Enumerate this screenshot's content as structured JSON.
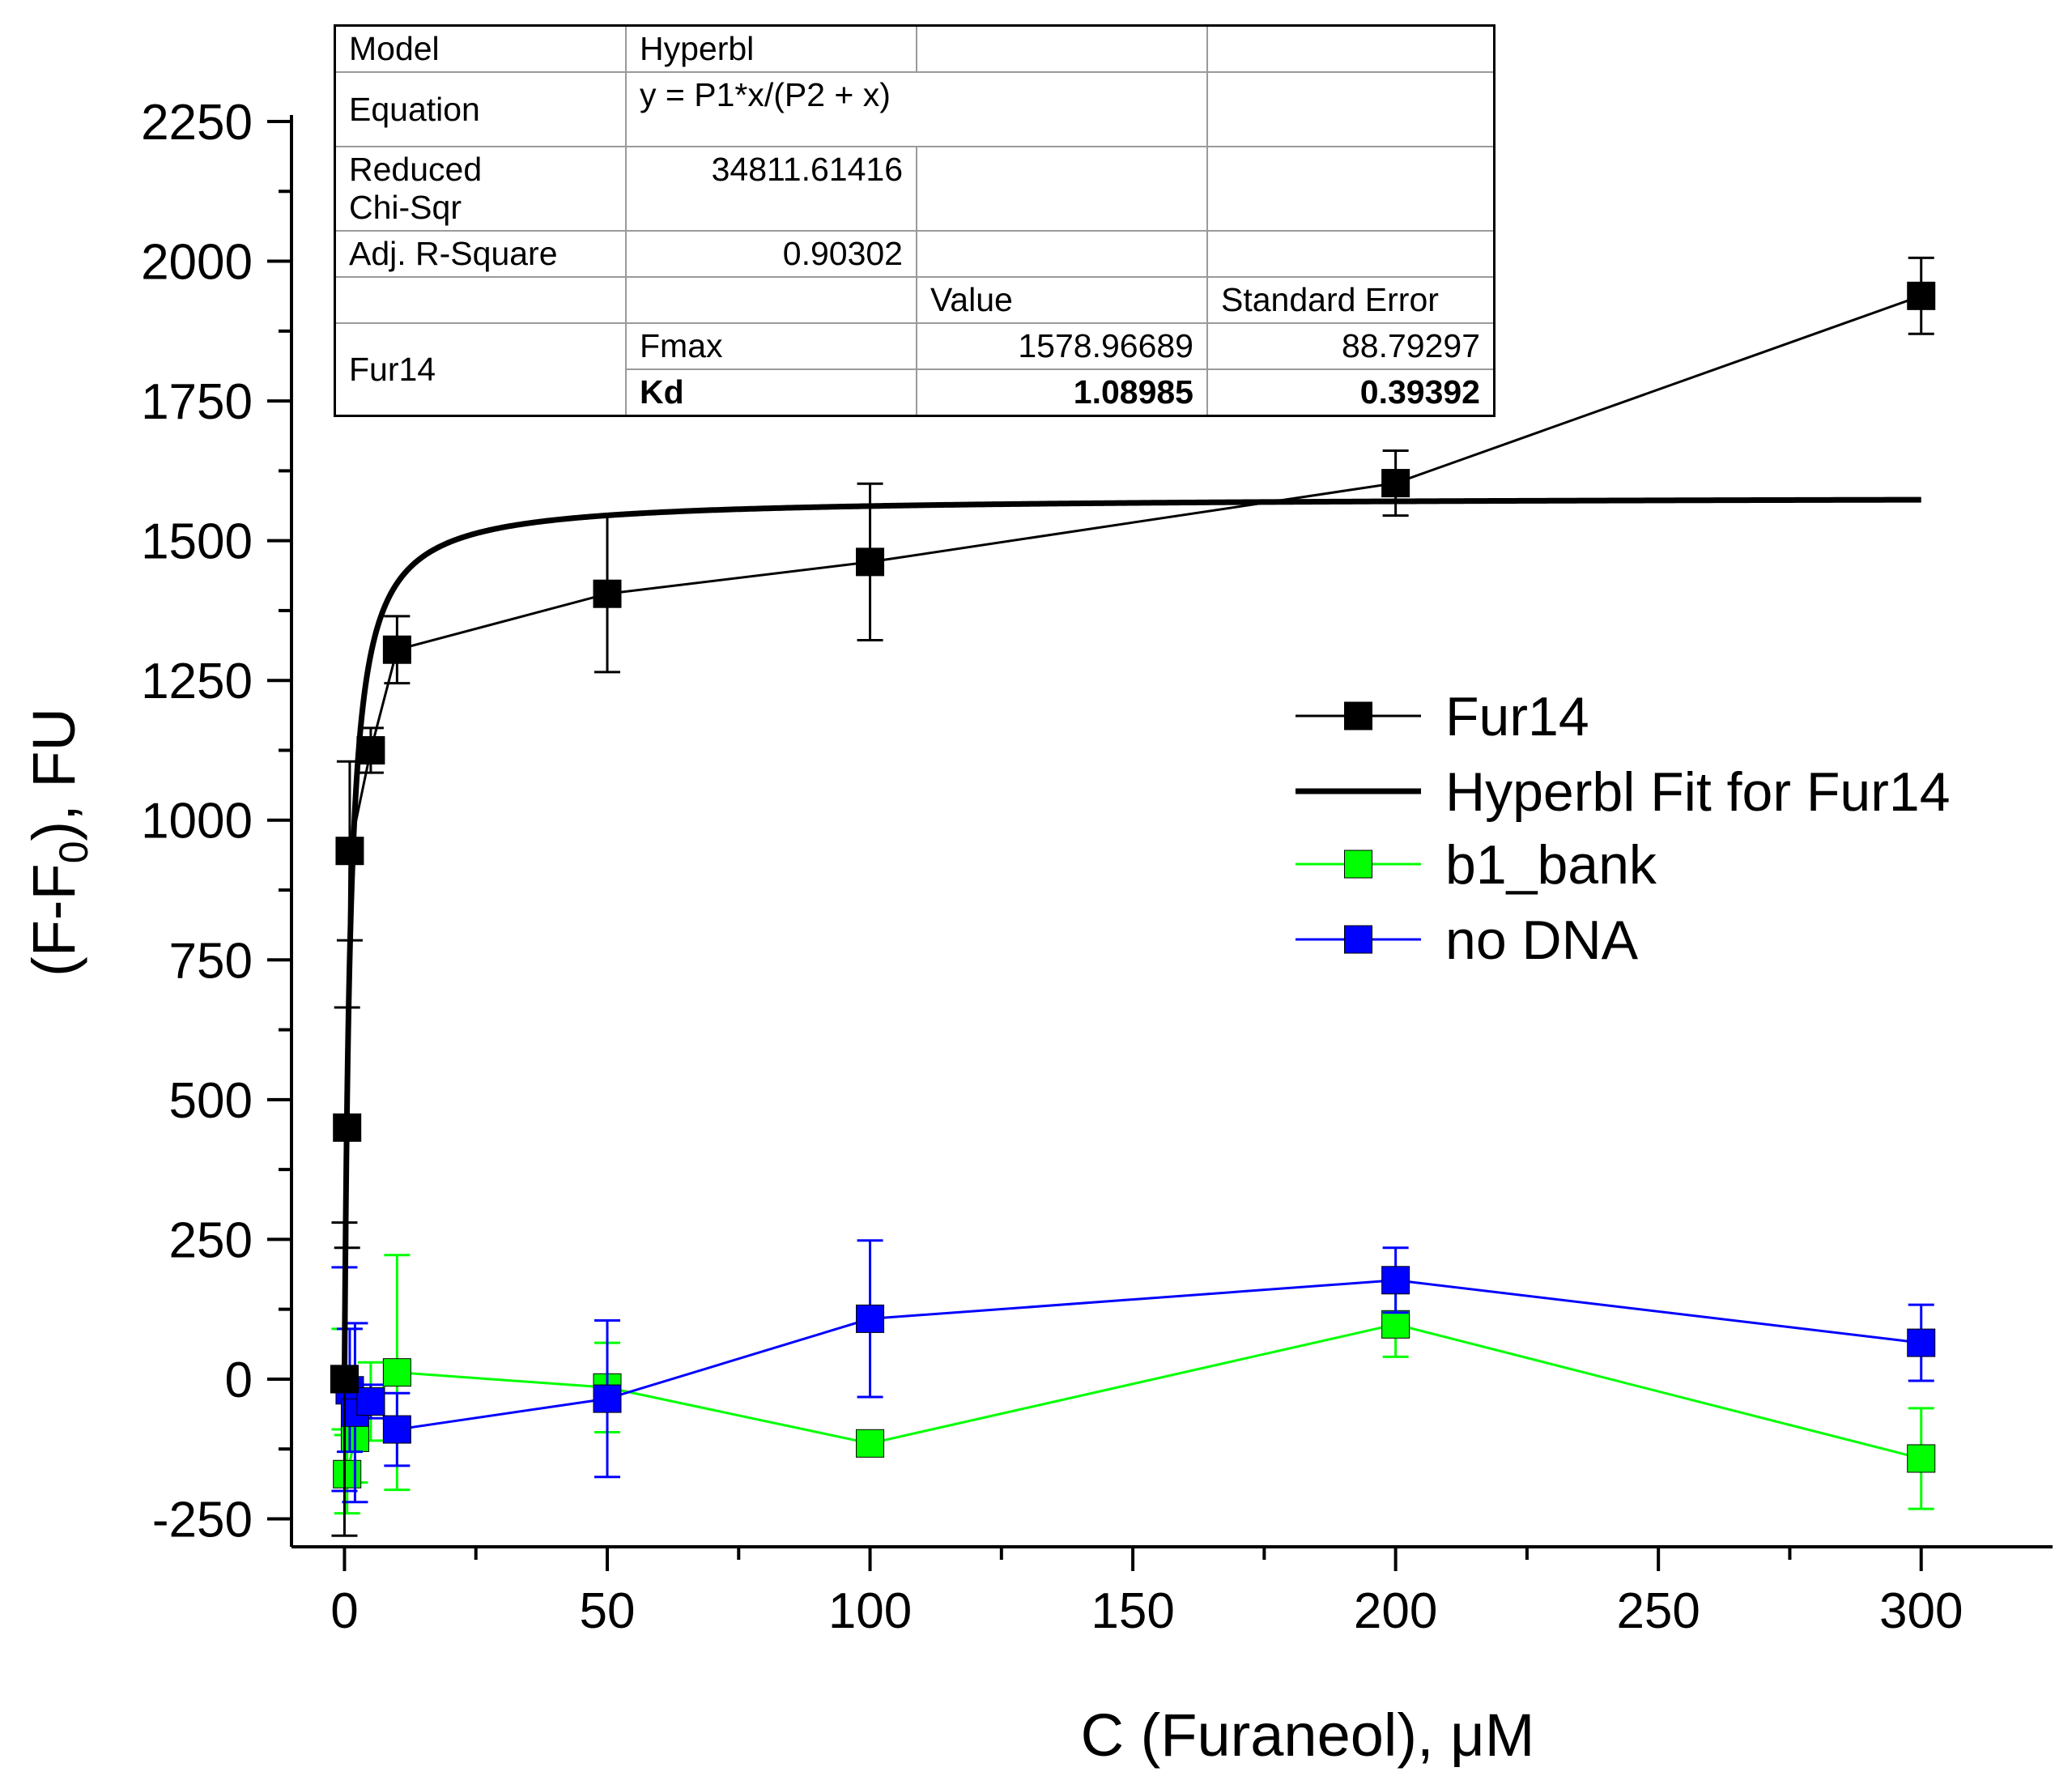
{
  "colors": {
    "fur14": "#000000",
    "fit": "#000000",
    "b1_bank": "#00ff00",
    "no_dna": "#0000ff"
  },
  "fit_table": {
    "model_label": "Model",
    "model_value": "Hyperbl",
    "equation_label": "Equation",
    "equation_value": "y = P1*x/(P2 + x)",
    "chisq_label_1": "Reduced",
    "chisq_label_2": "Chi-Sqr",
    "chisq_value": "34811.61416",
    "adjr_label": "Adj. R-Square",
    "adjr_value": "0.90302",
    "col_value": "Value",
    "col_stderr": "Standard Error",
    "dataset_label": "Fur14",
    "fmax_label": "Fmax",
    "fmax_value": "1578.96689",
    "fmax_err": "88.79297",
    "kd_label": "Kd",
    "kd_value": "1.08985",
    "kd_err": "0.39392"
  },
  "chart_data": {
    "type": "scatter",
    "title": "",
    "xlabel": "C (Furaneol), μM",
    "ylabel_main": "(F-F",
    "ylabel_sub": "0",
    "ylabel_tail": "), FU",
    "xlim": [
      -5,
      325
    ],
    "ylim": [
      -300,
      2250
    ],
    "xticks": [
      0,
      50,
      100,
      150,
      200,
      250,
      300
    ],
    "yticks": [
      -250,
      0,
      250,
      500,
      750,
      1000,
      1250,
      1500,
      1750,
      2000,
      2250
    ],
    "tick_labels_x": [
      "0",
      "50",
      "100",
      "150",
      "200",
      "250",
      "300"
    ],
    "tick_labels_y": [
      "-250",
      "0",
      "250",
      "500",
      "750",
      "1000",
      "1250",
      "1500",
      "1750",
      "2000",
      "2250"
    ],
    "legend_position": "center-right",
    "series": [
      {
        "name": "Fur14",
        "legend_label": "Fur14",
        "color_key": "fur14",
        "marker": "square",
        "points": [
          {
            "x": 0,
            "y": 0,
            "err": 280
          },
          {
            "x": 0.5,
            "y": 450,
            "err": 215
          },
          {
            "x": 1,
            "y": 945,
            "err": 160
          },
          {
            "x": 5,
            "y": 1125,
            "err": 40
          },
          {
            "x": 10,
            "y": 1305,
            "err": 60
          },
          {
            "x": 50,
            "y": 1405,
            "err": 140
          },
          {
            "x": 100,
            "y": 1462,
            "err": 140
          },
          {
            "x": 200,
            "y": 1603,
            "err": 58
          },
          {
            "x": 300,
            "y": 1938,
            "err": 68
          }
        ]
      },
      {
        "name": "Hyperbl Fit for Fur14",
        "legend_label": "Hyperbl Fit for Fur14",
        "color_key": "fit",
        "type": "line",
        "model": "hyperbola",
        "P1": 1578.96689,
        "P2": 1.08985,
        "x_range": [
          0,
          300
        ]
      },
      {
        "name": "b1_bank",
        "legend_label": "b1_bank",
        "color_key": "b1_bank",
        "marker": "square",
        "points": [
          {
            "x": 0,
            "y": 0,
            "err": 90
          },
          {
            "x": 0.5,
            "y": -170,
            "err": 70
          },
          {
            "x": 2,
            "y": -105,
            "err": 80
          },
          {
            "x": 5,
            "y": -40,
            "err": 70
          },
          {
            "x": 10,
            "y": 12,
            "err": 210
          },
          {
            "x": 50,
            "y": -15,
            "err": 80
          },
          {
            "x": 100,
            "y": -115,
            "err": 10
          },
          {
            "x": 200,
            "y": 98,
            "err": 58
          },
          {
            "x": 300,
            "y": -142,
            "err": 90
          }
        ]
      },
      {
        "name": "no DNA",
        "legend_label": "no DNA",
        "color_key": "no_dna",
        "marker": "square",
        "points": [
          {
            "x": 0,
            "y": 0,
            "err": 200
          },
          {
            "x": 1,
            "y": -20,
            "err": 110
          },
          {
            "x": 2,
            "y": -60,
            "err": 160
          },
          {
            "x": 5,
            "y": -40,
            "err": 30
          },
          {
            "x": 10,
            "y": -90,
            "err": 65
          },
          {
            "x": 50,
            "y": -35,
            "err": 140
          },
          {
            "x": 100,
            "y": 108,
            "err": 140
          },
          {
            "x": 200,
            "y": 177,
            "err": 58
          },
          {
            "x": 300,
            "y": 65,
            "err": 68
          }
        ]
      }
    ]
  }
}
